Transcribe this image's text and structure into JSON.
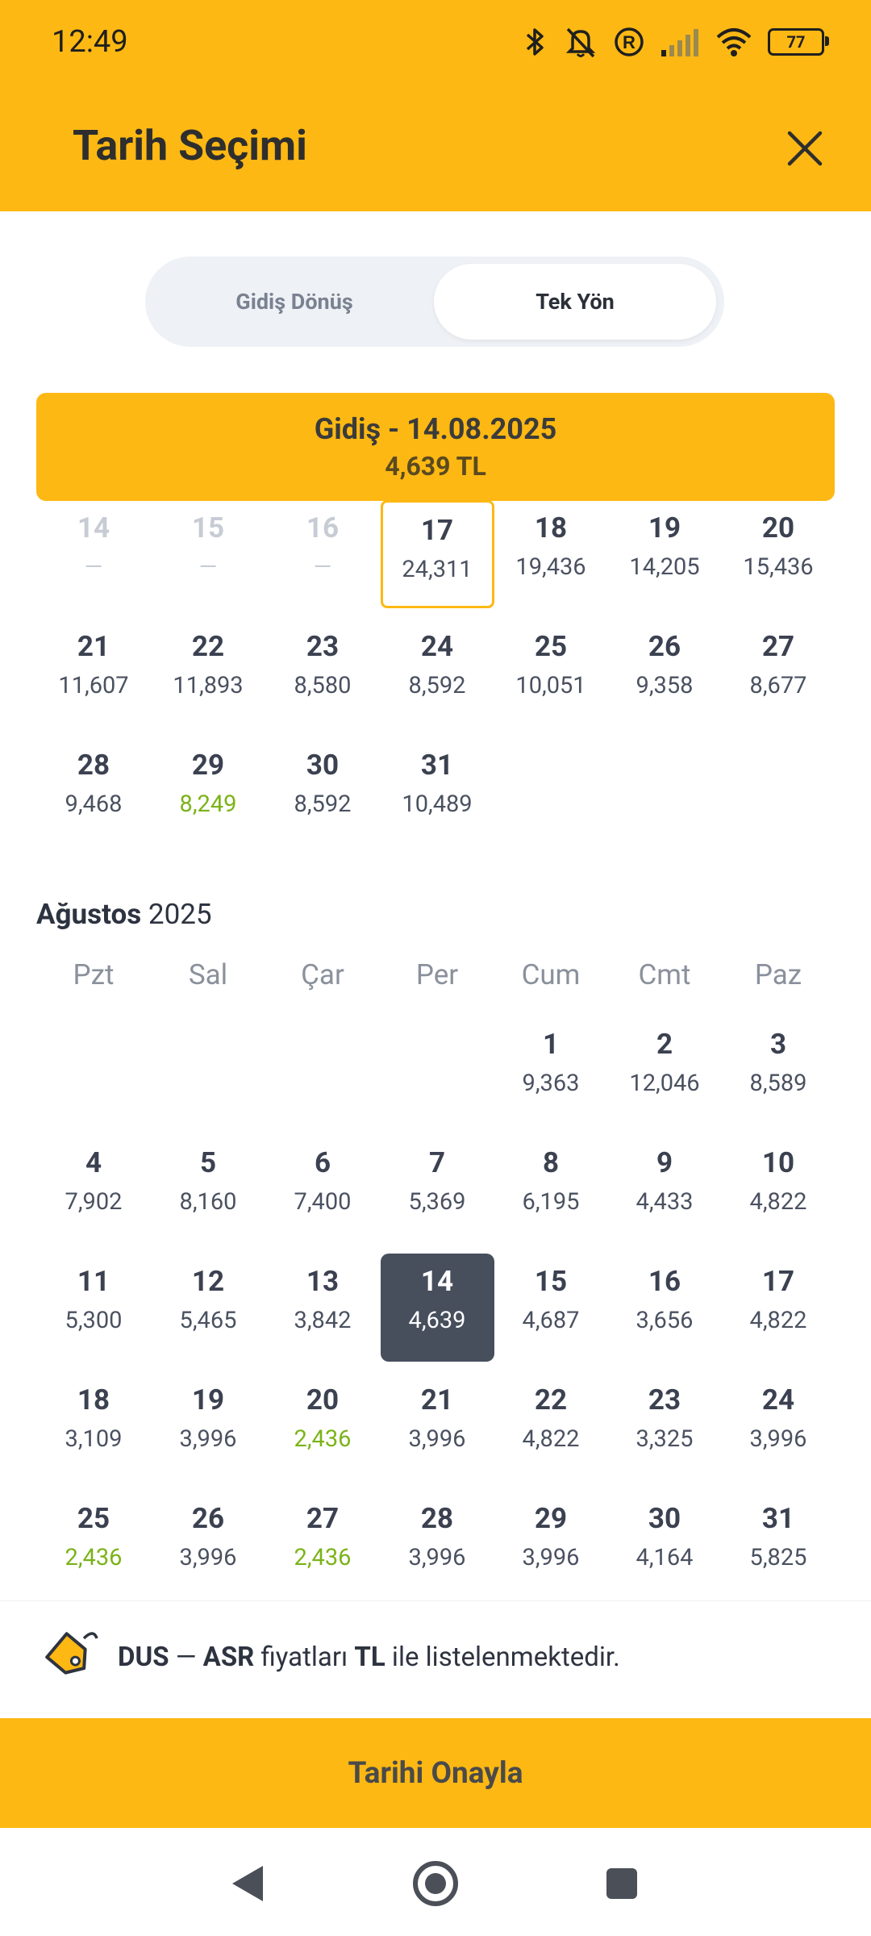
{
  "status_bar": {
    "time": "12:49",
    "battery": "77"
  },
  "header": {
    "title": "Tarih Seçimi"
  },
  "trip_type": {
    "round_trip": "Gidiş Dönüş",
    "one_way": "Tek Yön",
    "selected": "Tek Yön"
  },
  "selection": {
    "label": "Gidiş - 14.08.2025",
    "price": "4,639 TL"
  },
  "july_rows": [
    [
      {
        "day": "14",
        "price": "—",
        "state": "disabled"
      },
      {
        "day": "15",
        "price": "—",
        "state": "disabled"
      },
      {
        "day": "16",
        "price": "—",
        "state": "disabled"
      },
      {
        "day": "17",
        "price": "24,311",
        "state": "today"
      },
      {
        "day": "18",
        "price": "19,436"
      },
      {
        "day": "19",
        "price": "14,205"
      },
      {
        "day": "20",
        "price": "15,436"
      }
    ],
    [
      {
        "day": "21",
        "price": "11,607"
      },
      {
        "day": "22",
        "price": "11,893"
      },
      {
        "day": "23",
        "price": "8,580"
      },
      {
        "day": "24",
        "price": "8,592"
      },
      {
        "day": "25",
        "price": "10,051"
      },
      {
        "day": "26",
        "price": "9,358"
      },
      {
        "day": "27",
        "price": "8,677"
      }
    ],
    [
      {
        "day": "28",
        "price": "9,468"
      },
      {
        "day": "29",
        "price": "8,249",
        "state": "cheap"
      },
      {
        "day": "30",
        "price": "8,592"
      },
      {
        "day": "31",
        "price": "10,489"
      }
    ]
  ],
  "august": {
    "month": "Ağustos",
    "year": "2025",
    "weekdays": [
      "Pzt",
      "Sal",
      "Çar",
      "Per",
      "Cum",
      "Cmt",
      "Paz"
    ],
    "rows": [
      [
        null,
        null,
        null,
        null,
        {
          "day": "1",
          "price": "9,363"
        },
        {
          "day": "2",
          "price": "12,046"
        },
        {
          "day": "3",
          "price": "8,589"
        }
      ],
      [
        {
          "day": "4",
          "price": "7,902"
        },
        {
          "day": "5",
          "price": "8,160"
        },
        {
          "day": "6",
          "price": "7,400"
        },
        {
          "day": "7",
          "price": "5,369"
        },
        {
          "day": "8",
          "price": "6,195"
        },
        {
          "day": "9",
          "price": "4,433"
        },
        {
          "day": "10",
          "price": "4,822"
        }
      ],
      [
        {
          "day": "11",
          "price": "5,300"
        },
        {
          "day": "12",
          "price": "5,465"
        },
        {
          "day": "13",
          "price": "3,842"
        },
        {
          "day": "14",
          "price": "4,639",
          "state": "selected"
        },
        {
          "day": "15",
          "price": "4,687"
        },
        {
          "day": "16",
          "price": "3,656"
        },
        {
          "day": "17",
          "price": "4,822"
        }
      ],
      [
        {
          "day": "18",
          "price": "3,109"
        },
        {
          "day": "19",
          "price": "3,996"
        },
        {
          "day": "20",
          "price": "2,436",
          "state": "cheap"
        },
        {
          "day": "21",
          "price": "3,996"
        },
        {
          "day": "22",
          "price": "4,822"
        },
        {
          "day": "23",
          "price": "3,325"
        },
        {
          "day": "24",
          "price": "3,996"
        }
      ],
      [
        {
          "day": "25",
          "price": "2,436",
          "state": "cheap"
        },
        {
          "day": "26",
          "price": "3,996"
        },
        {
          "day": "27",
          "price": "2,436",
          "state": "cheap"
        },
        {
          "day": "28",
          "price": "3,996"
        },
        {
          "day": "29",
          "price": "3,996"
        },
        {
          "day": "30",
          "price": "4,164"
        },
        {
          "day": "31",
          "price": "5,825"
        }
      ]
    ]
  },
  "info": {
    "origin": "DUS",
    "separator": " — ",
    "destination": "ASR",
    "text_1": " fiyatları ",
    "currency": "TL",
    "text_2": " ile listelenmektedir."
  },
  "confirm_button": "Tarihi Onayla",
  "colors": {
    "accent": "#FDB813",
    "selected": "#474e5c",
    "cheap": "#7ab317"
  }
}
